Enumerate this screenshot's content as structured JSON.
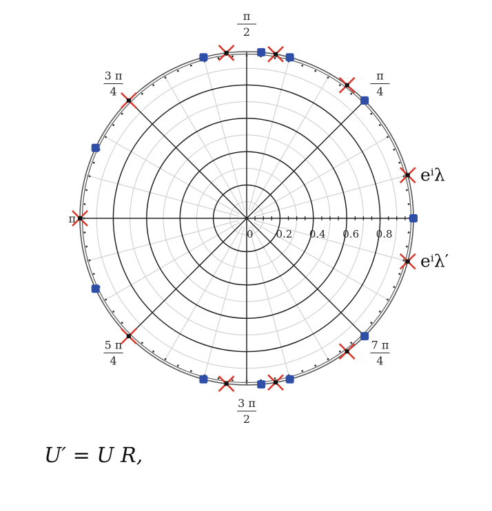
{
  "chart_data": {
    "type": "scatter",
    "subtype": "polar",
    "rlim": [
      0,
      1
    ],
    "radial_ticks": [
      "0",
      "0.2",
      "0.4",
      "0.6",
      "0.8"
    ],
    "angle_labels": [
      {
        "angle": 45,
        "num": "π",
        "den": "4"
      },
      {
        "angle": 90,
        "num": "π",
        "den": "2"
      },
      {
        "angle": 135,
        "num": "3 π",
        "den": "4"
      },
      {
        "angle": 180,
        "num": "π",
        "den": ""
      },
      {
        "angle": 225,
        "num": "5 π",
        "den": "4"
      },
      {
        "angle": 270,
        "num": "3 π",
        "den": "2"
      },
      {
        "angle": 315,
        "num": "7 π",
        "den": "4"
      }
    ],
    "grid": true,
    "series_labels": [
      {
        "text": "eⁱλ",
        "angle": 15
      },
      {
        "text": "eⁱλ′",
        "angle": -15
      }
    ],
    "series": [
      {
        "marker": "square",
        "color": "#2f4ea8",
        "points": [
          {
            "theta": 0,
            "r": 1
          },
          {
            "theta": 45,
            "r": 1
          },
          {
            "theta": 75,
            "r": 1
          },
          {
            "theta": 85,
            "r": 1
          },
          {
            "theta": 105,
            "r": 1
          },
          {
            "theta": 155,
            "r": 1
          },
          {
            "theta": 205,
            "r": 1
          },
          {
            "theta": 255,
            "r": 1
          },
          {
            "theta": 275,
            "r": 1
          },
          {
            "theta": 285,
            "r": 1
          },
          {
            "theta": 315,
            "r": 1
          }
        ]
      },
      {
        "marker": "cross",
        "color": "#d93a2e",
        "points": [
          {
            "theta": 15,
            "r": 1
          },
          {
            "theta": 53,
            "r": 1
          },
          {
            "theta": 80,
            "r": 1
          },
          {
            "theta": 97,
            "r": 1
          },
          {
            "theta": 135,
            "r": 1
          },
          {
            "theta": 180,
            "r": 1
          },
          {
            "theta": 225,
            "r": 1
          },
          {
            "theta": 263,
            "r": 1
          },
          {
            "theta": 280,
            "r": 1
          },
          {
            "theta": 307,
            "r": 1
          },
          {
            "theta": 345,
            "r": 1
          }
        ]
      }
    ]
  },
  "equation": "U′ = U R,"
}
